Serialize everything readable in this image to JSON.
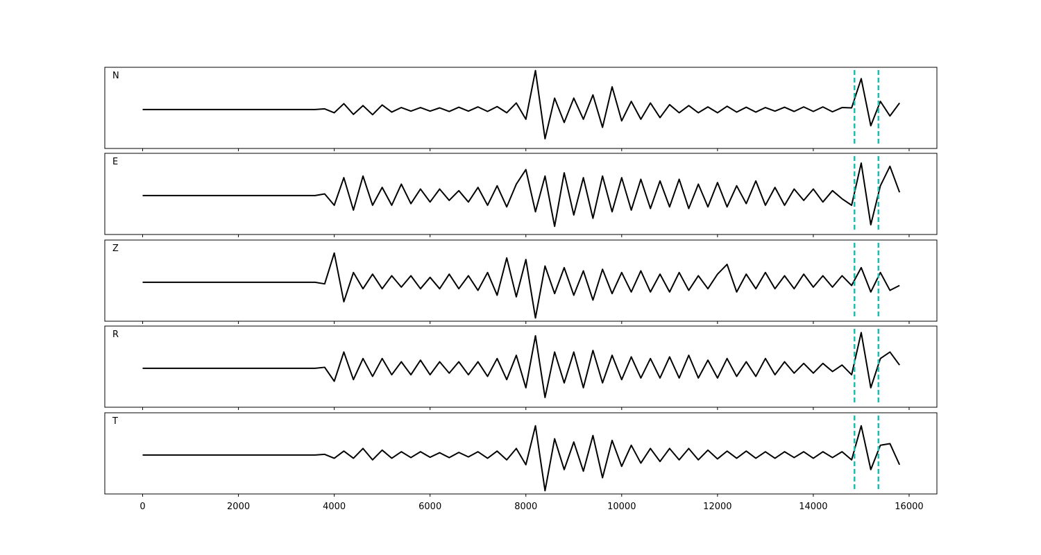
{
  "chart_data": {
    "type": "line",
    "x": [
      0,
      200,
      400,
      600,
      800,
      1000,
      1200,
      1400,
      1600,
      1800,
      2000,
      2200,
      2400,
      2600,
      2800,
      3000,
      3200,
      3400,
      3600,
      3800,
      4000,
      4200,
      4400,
      4600,
      4800,
      5000,
      5200,
      5400,
      5600,
      5800,
      6000,
      6200,
      6400,
      6600,
      6800,
      7000,
      7200,
      7400,
      7600,
      7800,
      8000,
      8200,
      8400,
      8600,
      8800,
      9000,
      9200,
      9400,
      9600,
      9800,
      10000,
      10200,
      10400,
      10600,
      10800,
      11000,
      11200,
      11400,
      11600,
      11800,
      12000,
      12200,
      12400,
      12600,
      12800,
      13000,
      13200,
      13400,
      13600,
      13800,
      14000,
      14200,
      14400,
      14600,
      14800,
      15000,
      15200,
      15400,
      15600,
      15800
    ],
    "series": [
      {
        "name": "N",
        "color": "#000000",
        "values": [
          0,
          0,
          0,
          0,
          0,
          0,
          0,
          0,
          0,
          0,
          0,
          0,
          0,
          0,
          0,
          0,
          0,
          0,
          0,
          0.02,
          -0.1,
          0.18,
          -0.15,
          0.12,
          -0.16,
          0.14,
          -0.08,
          0.06,
          -0.05,
          0.06,
          -0.05,
          0.05,
          -0.06,
          0.07,
          -0.05,
          0.08,
          -0.06,
          0.09,
          -0.1,
          0.2,
          -0.3,
          1.2,
          -0.9,
          0.35,
          -0.4,
          0.35,
          -0.3,
          0.45,
          -0.55,
          0.7,
          -0.35,
          0.25,
          -0.3,
          0.2,
          -0.25,
          0.15,
          -0.1,
          0.12,
          -0.1,
          0.08,
          -0.1,
          0.1,
          -0.08,
          0.07,
          -0.08,
          0.06,
          -0.05,
          0.07,
          -0.06,
          0.08,
          -0.06,
          0.08,
          -0.07,
          0.06,
          0.05,
          0.95,
          -0.5,
          0.25,
          -0.2,
          0.2
        ]
      },
      {
        "name": "E",
        "color": "#000000",
        "values": [
          0,
          0,
          0,
          0,
          0,
          0,
          0,
          0,
          0,
          0,
          0,
          0,
          0,
          0,
          0,
          0,
          0,
          0,
          0,
          0.05,
          -0.3,
          0.55,
          -0.45,
          0.6,
          -0.3,
          0.25,
          -0.3,
          0.35,
          -0.25,
          0.2,
          -0.2,
          0.2,
          -0.15,
          0.15,
          -0.2,
          0.25,
          -0.3,
          0.3,
          -0.35,
          0.35,
          0.8,
          -0.5,
          0.6,
          -0.95,
          0.7,
          -0.6,
          0.55,
          -0.7,
          0.6,
          -0.5,
          0.55,
          -0.45,
          0.5,
          -0.4,
          0.45,
          -0.35,
          0.5,
          -0.4,
          0.35,
          -0.35,
          0.4,
          -0.35,
          0.3,
          -0.25,
          0.45,
          -0.3,
          0.25,
          -0.3,
          0.2,
          -0.15,
          0.2,
          -0.2,
          0.15,
          -0.1,
          -0.3,
          1.0,
          -0.9,
          0.3,
          0.9,
          0.1
        ]
      },
      {
        "name": "Z",
        "color": "#000000",
        "values": [
          0,
          0,
          0,
          0,
          0,
          0,
          0,
          0,
          0,
          0,
          0,
          0,
          0,
          0,
          0,
          0,
          0,
          0,
          0,
          -0.05,
          0.9,
          -0.6,
          0.3,
          -0.2,
          0.25,
          -0.2,
          0.2,
          -0.15,
          0.2,
          -0.2,
          0.15,
          -0.2,
          0.25,
          -0.2,
          0.2,
          -0.25,
          0.3,
          -0.4,
          0.75,
          -0.45,
          0.7,
          -1.1,
          0.5,
          -0.35,
          0.45,
          -0.4,
          0.35,
          -0.55,
          0.4,
          -0.35,
          0.3,
          -0.3,
          0.35,
          -0.3,
          0.25,
          -0.3,
          0.3,
          -0.25,
          0.2,
          -0.2,
          0.25,
          0.55,
          -0.3,
          0.25,
          -0.2,
          0.3,
          -0.2,
          0.2,
          -0.2,
          0.25,
          -0.15,
          0.2,
          -0.15,
          0.2,
          -0.1,
          0.45,
          -0.3,
          0.3,
          -0.25,
          -0.1
        ]
      },
      {
        "name": "R",
        "color": "#000000",
        "values": [
          0,
          0,
          0,
          0,
          0,
          0,
          0,
          0,
          0,
          0,
          0,
          0,
          0,
          0,
          0,
          0,
          0,
          0,
          0,
          0.03,
          -0.4,
          0.5,
          -0.35,
          0.3,
          -0.25,
          0.3,
          -0.2,
          0.2,
          -0.2,
          0.25,
          -0.2,
          0.2,
          -0.15,
          0.2,
          -0.2,
          0.2,
          -0.25,
          0.3,
          -0.35,
          0.4,
          -0.6,
          1.0,
          -0.9,
          0.5,
          -0.45,
          0.5,
          -0.6,
          0.55,
          -0.45,
          0.4,
          -0.35,
          0.35,
          -0.3,
          0.3,
          -0.3,
          0.35,
          -0.3,
          0.4,
          -0.3,
          0.25,
          -0.3,
          0.3,
          -0.25,
          0.2,
          -0.25,
          0.3,
          -0.2,
          0.2,
          -0.15,
          0.15,
          -0.15,
          0.15,
          -0.1,
          0.1,
          -0.2,
          1.1,
          -0.6,
          0.3,
          0.5,
          0.1
        ]
      },
      {
        "name": "T",
        "color": "#000000",
        "values": [
          0,
          0,
          0,
          0,
          0,
          0,
          0,
          0,
          0,
          0,
          0,
          0,
          0,
          0,
          0,
          0,
          0,
          0,
          0,
          0.02,
          -0.1,
          0.12,
          -0.1,
          0.2,
          -0.15,
          0.15,
          -0.1,
          0.1,
          -0.08,
          0.1,
          -0.07,
          0.07,
          -0.08,
          0.08,
          -0.06,
          0.1,
          -0.1,
          0.12,
          -0.15,
          0.2,
          -0.3,
          0.9,
          -1.1,
          0.5,
          -0.45,
          0.4,
          -0.5,
          0.6,
          -0.7,
          0.45,
          -0.35,
          0.3,
          -0.25,
          0.2,
          -0.2,
          0.2,
          -0.15,
          0.2,
          -0.15,
          0.15,
          -0.12,
          0.12,
          -0.1,
          0.12,
          -0.1,
          0.1,
          -0.1,
          0.1,
          -0.08,
          0.1,
          -0.1,
          0.1,
          -0.08,
          0.1,
          -0.15,
          0.9,
          -0.45,
          0.3,
          0.35,
          -0.3
        ]
      }
    ],
    "vlines": [
      14860,
      15360
    ],
    "vline_color": "#17c0b0",
    "xlim": [
      -790,
      16580
    ],
    "xticks": [
      0,
      2000,
      4000,
      6000,
      8000,
      10000,
      12000,
      14000,
      16000
    ],
    "ylim": [
      -1.2,
      1.3
    ]
  }
}
